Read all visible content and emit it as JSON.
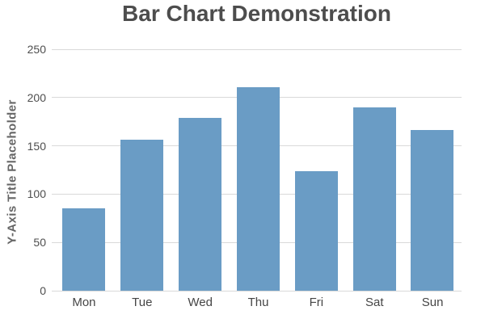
{
  "chart": {
    "title": "Bar Chart Demonstration",
    "y_axis_title": "Y-Axis Title Placeholder"
  },
  "chart_data": {
    "type": "bar",
    "categories": [
      "Mon",
      "Tue",
      "Wed",
      "Thu",
      "Fri",
      "Sat",
      "Sun"
    ],
    "values": [
      85,
      156,
      179,
      211,
      124,
      190,
      166
    ],
    "title": "Bar Chart Demonstration",
    "xlabel": "",
    "ylabel": "Y-Axis Title Placeholder",
    "ylim": [
      0,
      250
    ],
    "yticks": [
      0,
      50,
      100,
      150,
      200,
      250
    ],
    "grid": "horizontal",
    "legend": "none"
  },
  "colors": {
    "bar": "#6A9CC5",
    "gridline": "#D9D9D9",
    "title_text": "#4D4D4D",
    "y_tick_text": "#4E4E4E",
    "x_tick_text": "#454545",
    "y_title_text": "#666666",
    "background": "#FFFFFF"
  }
}
